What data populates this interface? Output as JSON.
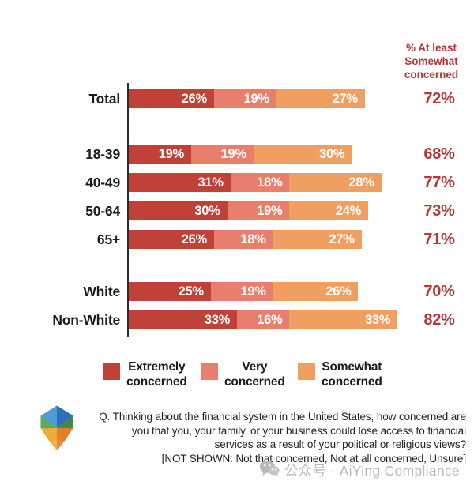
{
  "right_column_header": {
    "lines": [
      "% At least",
      "Somewhat",
      "concerned"
    ]
  },
  "chart_data": {
    "type": "bar",
    "orientation": "horizontal",
    "stacked": true,
    "categories": [
      "Total",
      "18-39",
      "40-49",
      "50-64",
      "65+",
      "White",
      "Non-White"
    ],
    "series": [
      {
        "name": "Extremely concerned",
        "color": "#c04138",
        "values": [
          26,
          19,
          31,
          30,
          26,
          25,
          33
        ]
      },
      {
        "name": "Very concerned",
        "color": "#e87f6d",
        "values": [
          19,
          19,
          18,
          19,
          18,
          19,
          16
        ]
      },
      {
        "name": "Somewhat concerned",
        "color": "#efa061",
        "values": [
          27,
          30,
          28,
          24,
          27,
          26,
          33
        ]
      }
    ],
    "totals": [
      72,
      68,
      77,
      73,
      71,
      70,
      82
    ],
    "totals_column_label": "% At least Somewhat concerned",
    "value_suffix": "%",
    "xlim": [
      0,
      100
    ],
    "grid": false,
    "legend_position": "bottom"
  },
  "legend": {
    "items": [
      {
        "line1": "Extremely",
        "line2": "concerned",
        "color": "#c04138"
      },
      {
        "line1": "Very",
        "line2": "concerned",
        "color": "#e87f6d"
      },
      {
        "line1": "Somewhat",
        "line2": "concerned",
        "color": "#efa061"
      }
    ]
  },
  "footer": {
    "question_lines": [
      "Q. Thinking about the financial system in the United States, how concerned are",
      "you that you, your family, or your business could lose access to financial",
      "services as a result of your political or religious views?",
      "[NOT SHOWN: Not that concerned, Not at all concerned, Unsure]"
    ],
    "watermark_text": "公众号 · AiYing Compliance"
  },
  "colors": {
    "extremely": "#c04138",
    "very": "#e87f6d",
    "somewhat": "#efa061",
    "red_text": "#b43737",
    "axis": "#2b2b2b",
    "watermark_gray": "#b9b9b9"
  }
}
